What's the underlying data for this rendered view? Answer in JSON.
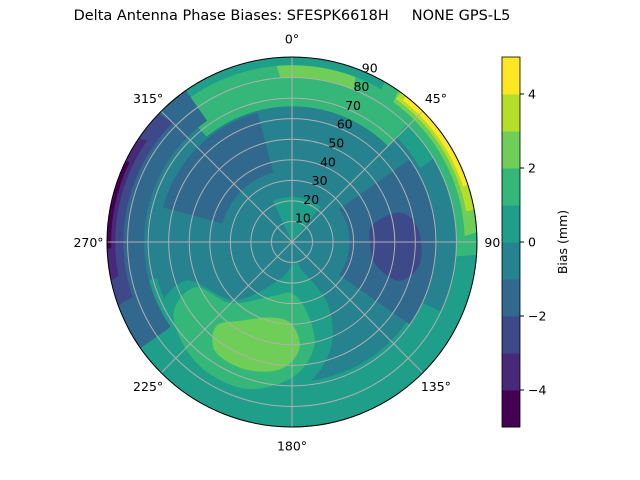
{
  "chart_data": {
    "type": "contour",
    "projection": "polar",
    "title": "Delta Antenna Phase Biases: SFESPK6618H     NONE GPS-L5",
    "theta_zero": "top",
    "theta_direction": "clockwise",
    "angular_ticks": [
      "0°",
      "45°",
      "90°",
      "135°",
      "180°",
      "225°",
      "270°",
      "315°"
    ],
    "angular_tick_values": [
      0,
      45,
      90,
      135,
      180,
      225,
      270,
      315
    ],
    "radial_ticks": [
      "10",
      "20",
      "30",
      "40",
      "50",
      "60",
      "70",
      "80",
      "90"
    ],
    "radial_tick_values": [
      10,
      20,
      30,
      40,
      50,
      60,
      70,
      80,
      90
    ],
    "rlim": [
      0,
      90
    ],
    "grid": true,
    "colorbar": {
      "label": "Bias (mm)",
      "levels": [
        -5,
        -4,
        -3,
        -2,
        -1,
        0,
        1,
        2,
        3,
        4,
        5
      ],
      "tick_values": [
        -4,
        -2,
        0,
        2,
        4
      ],
      "tick_labels": [
        "−4",
        "−2",
        "0",
        "2",
        "4"
      ],
      "colormap": "viridis",
      "colors": [
        "#440154",
        "#482878",
        "#3e4989",
        "#31688e",
        "#26828e",
        "#1f9e89",
        "#35b779",
        "#6ece58",
        "#b5de2b",
        "#fde725"
      ]
    },
    "background_level": [
      -1,
      0
    ],
    "regions_sector": [
      {
        "level": [
          0,
          1
        ],
        "az": [
          -45,
          60
        ],
        "r": [
          72,
          90
        ]
      },
      {
        "level": [
          0,
          1
        ],
        "az": [
          40,
          180
        ],
        "r": [
          80,
          90
        ]
      },
      {
        "level": [
          0,
          1
        ],
        "az": [
          115,
          255
        ],
        "r": [
          68,
          90
        ]
      },
      {
        "level": [
          0,
          1
        ],
        "az": [
          -25,
          40
        ],
        "r": [
          0,
          22
        ]
      },
      {
        "level": [
          1,
          2
        ],
        "az": [
          -40,
          45
        ],
        "r": [
          66,
          86
        ]
      },
      {
        "level": [
          1,
          2
        ],
        "az": [
          30,
          95
        ],
        "r": [
          80,
          90
        ]
      },
      {
        "level": [
          2,
          3
        ],
        "az": [
          -5,
          22
        ],
        "r": [
          80,
          86
        ]
      },
      {
        "level": [
          2,
          3
        ],
        "az": [
          35,
          88
        ],
        "r": [
          84,
          90
        ]
      },
      {
        "level": [
          3,
          4
        ],
        "az": [
          36,
          80
        ],
        "r": [
          86,
          90
        ]
      },
      {
        "level": [
          4,
          5
        ],
        "az": [
          38,
          72
        ],
        "r": [
          87.5,
          90
        ]
      },
      {
        "level": [
          -2,
          -1
        ],
        "az": [
          235,
          325
        ],
        "r": [
          72,
          90
        ]
      },
      {
        "level": [
          -3,
          -2
        ],
        "az": [
          250,
          315
        ],
        "r": [
          82,
          90
        ]
      },
      {
        "level": [
          -4,
          -3
        ],
        "az": [
          258,
          305
        ],
        "r": [
          86,
          90
        ]
      },
      {
        "level": [
          -5,
          -4
        ],
        "az": [
          268,
          296
        ],
        "r": [
          88,
          90
        ]
      },
      {
        "level": [
          -2,
          -1
        ],
        "az": [
          55,
          125
        ],
        "r": [
          28,
          70
        ]
      },
      {
        "level": [
          -2,
          -1
        ],
        "az": [
          285,
          345
        ],
        "r": [
          35,
          65
        ]
      }
    ],
    "regions_blob": [
      {
        "level": [
          0,
          1
        ],
        "points": [
          [
            170,
            10
          ],
          [
            200,
            20
          ],
          [
            225,
            40
          ],
          [
            250,
            55
          ],
          [
            240,
            75
          ],
          [
            215,
            82
          ],
          [
            195,
            80
          ],
          [
            175,
            70
          ],
          [
            160,
            55
          ],
          [
            150,
            35
          ],
          [
            160,
            15
          ]
        ]
      },
      {
        "level": [
          1,
          2
        ],
        "points": [
          [
            180,
            25
          ],
          [
            200,
            28
          ],
          [
            225,
            42
          ],
          [
            245,
            52
          ],
          [
            238,
            68
          ],
          [
            218,
            75
          ],
          [
            198,
            75
          ],
          [
            180,
            66
          ],
          [
            168,
            52
          ],
          [
            168,
            35
          ]
        ]
      },
      {
        "level": [
          2,
          3
        ],
        "points": [
          [
            180,
            40
          ],
          [
            195,
            38
          ],
          [
            212,
            45
          ],
          [
            222,
            55
          ],
          [
            215,
            65
          ],
          [
            200,
            66
          ],
          [
            185,
            62
          ],
          [
            176,
            52
          ]
        ]
      },
      {
        "level": [
          -3,
          -2
        ],
        "points": [
          [
            78,
            40
          ],
          [
            92,
            38
          ],
          [
            105,
            42
          ],
          [
            110,
            55
          ],
          [
            100,
            63
          ],
          [
            85,
            62
          ],
          [
            75,
            55
          ]
        ]
      }
    ]
  }
}
